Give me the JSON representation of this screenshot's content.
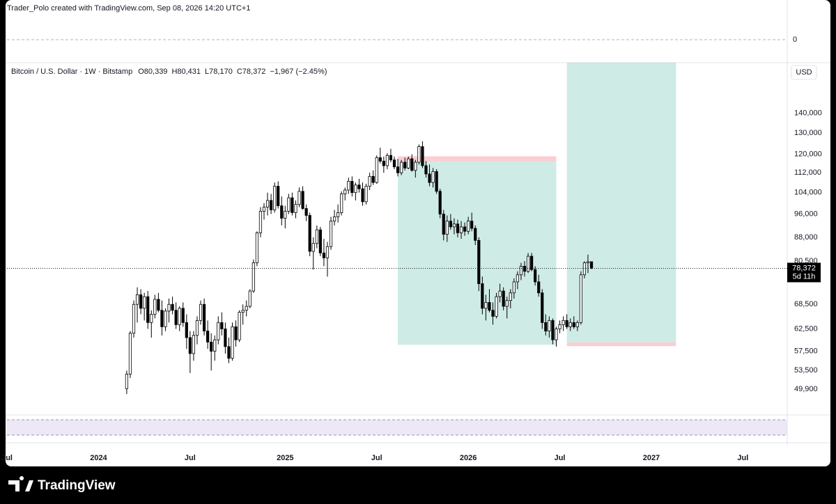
{
  "caption": "Trader_Polo created with TradingView.com, Sep 08, 2026 14:20 UTC+1",
  "brand": "TradingView",
  "chart_data": {
    "type": "candlestick",
    "title": "Bitcoin / U.S. Dollar · 1W · Bitstamp",
    "ohlc_legend": [
      {
        "prefix": "O",
        "value": 80339,
        "label": "80,339"
      },
      {
        "prefix": "H",
        "value": 80431,
        "label": "80,431"
      },
      {
        "prefix": "L",
        "value": 78170,
        "label": "78,170"
      },
      {
        "prefix": "C",
        "value": 78372,
        "label": "78,372"
      }
    ],
    "change": "−1,967 (−2.45%)",
    "currency": "USD",
    "last_price": {
      "value": 78372,
      "label": "78,372"
    },
    "countdown": "5d 11h",
    "macd_yticks": [
      0
    ],
    "log_scale": true,
    "up_color": "#ffffff",
    "down_color": "#000000",
    "xlim": [
      -1,
      221
    ],
    "xticks": [
      {
        "value": 0,
        "label": "Jul"
      },
      {
        "value": 26,
        "label": "2024"
      },
      {
        "value": 52,
        "label": "Jul"
      },
      {
        "value": 79,
        "label": "2025"
      },
      {
        "value": 105,
        "label": "Jul"
      },
      {
        "value": 131,
        "label": "2026"
      },
      {
        "value": 157,
        "label": "Jul"
      },
      {
        "value": 183,
        "label": "2027"
      },
      {
        "value": 209,
        "label": "Jul"
      }
    ],
    "ylim": [
      45800,
      169000
    ],
    "yticks": [
      {
        "value": 140000,
        "label": "140,000"
      },
      {
        "value": 130000,
        "label": "130,000"
      },
      {
        "value": 120000,
        "label": "120,000"
      },
      {
        "value": 112000,
        "label": "112,000"
      },
      {
        "value": 104000,
        "label": "104,000"
      },
      {
        "value": 96000,
        "label": "96,000"
      },
      {
        "value": 88000,
        "label": "88,000"
      },
      {
        "value": 80500,
        "label": "80,500"
      },
      {
        "value": 68500,
        "label": "68,500"
      },
      {
        "value": 62500,
        "label": "62,500"
      },
      {
        "value": 57500,
        "label": "57,500"
      },
      {
        "value": 53500,
        "label": "53,500"
      },
      {
        "value": 49900,
        "label": "49,900"
      }
    ],
    "positions": [
      {
        "start": 111,
        "end": 156,
        "entry": 117000,
        "stop": 119100,
        "target": 58900
      },
      {
        "start": 159,
        "end": 190,
        "entry": 59400,
        "stop": 58600,
        "target": 169000
      }
    ],
    "x": [
      34,
      35,
      36,
      37,
      38,
      39,
      40,
      41,
      42,
      43,
      44,
      45,
      46,
      47,
      48,
      49,
      50,
      51,
      52,
      53,
      54,
      55,
      56,
      57,
      58,
      59,
      60,
      61,
      62,
      63,
      64,
      65,
      66,
      67,
      68,
      69,
      70,
      71,
      72,
      73,
      74,
      75,
      76,
      77,
      78,
      79,
      80,
      81,
      82,
      83,
      84,
      85,
      86,
      87,
      88,
      89,
      90,
      91,
      92,
      93,
      94,
      95,
      96,
      97,
      98,
      99,
      100,
      101,
      102,
      103,
      104,
      105,
      106,
      107,
      108,
      109,
      110,
      111,
      112,
      113,
      114,
      115,
      116,
      117,
      118,
      119,
      120,
      121,
      122,
      123,
      124,
      125,
      126,
      127,
      128,
      129,
      130,
      131,
      132,
      133,
      134,
      135,
      136,
      137,
      138,
      139,
      140,
      141,
      142,
      143,
      144,
      145,
      146,
      147,
      148,
      149,
      150,
      151,
      152,
      153,
      154,
      155,
      156,
      157,
      158,
      159,
      160,
      161,
      162,
      163,
      164,
      165,
      166
    ],
    "ohlc": [
      [
        50000,
        53500,
        49000,
        52800
      ],
      [
        52800,
        62000,
        52000,
        61500
      ],
      [
        61500,
        69500,
        60500,
        68500
      ],
      [
        68500,
        73000,
        64000,
        71000
      ],
      [
        71000,
        72500,
        66000,
        67500
      ],
      [
        67500,
        71500,
        64500,
        70500
      ],
      [
        70500,
        72000,
        62500,
        64000
      ],
      [
        64000,
        67000,
        60500,
        66000
      ],
      [
        66000,
        71000,
        65000,
        69800
      ],
      [
        69800,
        71500,
        66500,
        67000
      ],
      [
        67000,
        69500,
        61000,
        63000
      ],
      [
        63000,
        67500,
        62000,
        66800
      ],
      [
        66800,
        70000,
        64000,
        68500
      ],
      [
        68500,
        70500,
        66000,
        67000
      ],
      [
        67000,
        69000,
        62500,
        63500
      ],
      [
        63500,
        68000,
        62000,
        67500
      ],
      [
        67500,
        69000,
        63000,
        64000
      ],
      [
        64000,
        66000,
        58000,
        60500
      ],
      [
        60500,
        62000,
        53000,
        57000
      ],
      [
        57000,
        62000,
        55500,
        61000
      ],
      [
        61000,
        65500,
        59000,
        64500
      ],
      [
        64500,
        69500,
        63500,
        68500
      ],
      [
        68500,
        70000,
        61000,
        62000
      ],
      [
        62000,
        64500,
        58000,
        59500
      ],
      [
        59500,
        61500,
        53500,
        57500
      ],
      [
        57500,
        61000,
        55500,
        60000
      ],
      [
        60000,
        65500,
        59000,
        64000
      ],
      [
        64000,
        66500,
        61000,
        62500
      ],
      [
        62500,
        64000,
        57000,
        58500
      ],
      [
        58500,
        60500,
        55000,
        56000
      ],
      [
        56000,
        64000,
        55500,
        63000
      ],
      [
        63000,
        64500,
        58500,
        60000
      ],
      [
        60000,
        67000,
        59500,
        66500
      ],
      [
        66500,
        68500,
        63500,
        67000
      ],
      [
        67000,
        69500,
        65500,
        68000
      ],
      [
        68000,
        72500,
        67500,
        72000
      ],
      [
        72000,
        81000,
        71500,
        80000
      ],
      [
        80000,
        90000,
        79000,
        89500
      ],
      [
        89500,
        98500,
        88000,
        97000
      ],
      [
        97000,
        100000,
        94000,
        98500
      ],
      [
        98500,
        104000,
        95500,
        101000
      ],
      [
        101000,
        103500,
        96000,
        97500
      ],
      [
        97500,
        108000,
        96500,
        106500
      ],
      [
        106500,
        108500,
        98000,
        99000
      ],
      [
        99000,
        102500,
        92000,
        94500
      ],
      [
        94500,
        99000,
        91000,
        97000
      ],
      [
        97000,
        103500,
        96000,
        102000
      ],
      [
        102000,
        104000,
        95500,
        96500
      ],
      [
        96500,
        101000,
        94500,
        99500
      ],
      [
        99500,
        106000,
        98500,
        104500
      ],
      [
        104500,
        106500,
        97500,
        98000
      ],
      [
        98000,
        99500,
        93500,
        95500
      ],
      [
        95500,
        96500,
        82000,
        83500
      ],
      [
        83500,
        88000,
        78000,
        86000
      ],
      [
        86000,
        92000,
        84500,
        90500
      ],
      [
        90500,
        91500,
        82000,
        83000
      ],
      [
        83000,
        87500,
        79000,
        81500
      ],
      [
        81500,
        86500,
        76000,
        85000
      ],
      [
        85000,
        95000,
        84000,
        93500
      ],
      [
        93500,
        97500,
        92000,
        95000
      ],
      [
        95000,
        99500,
        93000,
        96500
      ],
      [
        96500,
        104500,
        95500,
        103500
      ],
      [
        103500,
        106000,
        101000,
        105000
      ],
      [
        105000,
        110000,
        103500,
        108500
      ],
      [
        108500,
        110500,
        102500,
        104000
      ],
      [
        104000,
        108000,
        101000,
        107000
      ],
      [
        107000,
        109500,
        104000,
        105500
      ],
      [
        105500,
        108000,
        99000,
        100500
      ],
      [
        100500,
        107500,
        99500,
        106500
      ],
      [
        106500,
        112000,
        105000,
        110500
      ],
      [
        110500,
        113000,
        107000,
        108000
      ],
      [
        108000,
        119500,
        107500,
        118500
      ],
      [
        118500,
        123000,
        116000,
        117000
      ],
      [
        117000,
        119000,
        112000,
        115000
      ],
      [
        115000,
        120500,
        113500,
        119500
      ],
      [
        119500,
        122500,
        116500,
        117500
      ],
      [
        117500,
        119000,
        113500,
        114500
      ],
      [
        114500,
        118000,
        110500,
        112000
      ],
      [
        112000,
        117500,
        111000,
        116500
      ],
      [
        116500,
        118500,
        113000,
        114000
      ],
      [
        114000,
        119000,
        113500,
        118000
      ],
      [
        118000,
        120000,
        112500,
        113000
      ],
      [
        113000,
        117500,
        110000,
        116500
      ],
      [
        116500,
        124500,
        115500,
        123500
      ],
      [
        123500,
        126000,
        114000,
        115000
      ],
      [
        115000,
        117000,
        110000,
        111500
      ],
      [
        111500,
        115500,
        106500,
        108000
      ],
      [
        108000,
        114000,
        106000,
        112500
      ],
      [
        112500,
        113500,
        103500,
        104500
      ],
      [
        104500,
        105500,
        94500,
        96000
      ],
      [
        96000,
        97500,
        87000,
        89000
      ],
      [
        89000,
        95500,
        86500,
        93500
      ],
      [
        93500,
        96000,
        90500,
        91500
      ],
      [
        91500,
        94500,
        89000,
        92500
      ],
      [
        92500,
        94000,
        88000,
        89500
      ],
      [
        89500,
        93500,
        87500,
        91500
      ],
      [
        91500,
        93000,
        88500,
        90000
      ],
      [
        90000,
        95000,
        89000,
        93500
      ],
      [
        93500,
        96500,
        90000,
        91000
      ],
      [
        91000,
        92000,
        85500,
        87000
      ],
      [
        87000,
        88000,
        72000,
        74000
      ],
      [
        74000,
        76000,
        66000,
        67500
      ],
      [
        67500,
        71000,
        64500,
        69000
      ],
      [
        69000,
        72500,
        66500,
        67000
      ],
      [
        67000,
        69000,
        63500,
        65500
      ],
      [
        65500,
        71500,
        65000,
        70500
      ],
      [
        70500,
        74000,
        69000,
        72000
      ],
      [
        72000,
        73000,
        67000,
        68000
      ],
      [
        68000,
        70500,
        65000,
        69500
      ],
      [
        69500,
        72500,
        67500,
        71500
      ],
      [
        71500,
        75500,
        70000,
        74500
      ],
      [
        74500,
        77500,
        72500,
        76500
      ],
      [
        76500,
        80000,
        75000,
        79000
      ],
      [
        79000,
        80500,
        76000,
        77500
      ],
      [
        77500,
        83000,
        77000,
        82000
      ],
      [
        82000,
        83000,
        77500,
        78000
      ],
      [
        78000,
        79000,
        73500,
        74500
      ],
      [
        74500,
        76500,
        70500,
        71500
      ],
      [
        71500,
        72500,
        62500,
        64000
      ],
      [
        64000,
        66000,
        61000,
        62000
      ],
      [
        62000,
        65500,
        60500,
        64500
      ],
      [
        64500,
        65000,
        59000,
        60000
      ],
      [
        60000,
        63000,
        58500,
        62500
      ],
      [
        62500,
        64500,
        61500,
        63500
      ],
      [
        63500,
        65500,
        62000,
        64500
      ],
      [
        64500,
        66000,
        62500,
        63000
      ],
      [
        63000,
        65000,
        62000,
        64000
      ],
      [
        64000,
        65500,
        62500,
        63000
      ],
      [
        63000,
        64500,
        62000,
        64000
      ],
      [
        64000,
        77500,
        63500,
        76500
      ],
      [
        76500,
        80500,
        75500,
        80000
      ],
      [
        80000,
        82500,
        77000,
        80339
      ],
      [
        80339,
        80431,
        78170,
        78372
      ]
    ]
  }
}
